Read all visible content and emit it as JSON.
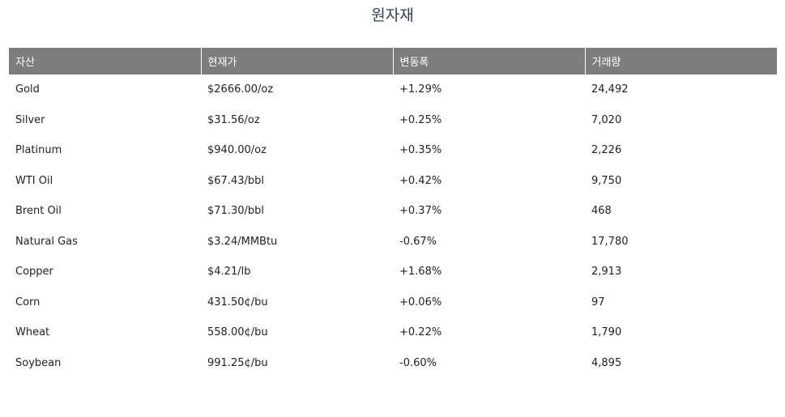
{
  "page": {
    "title": "원자재"
  },
  "table": {
    "headers": [
      "자산",
      "현재가",
      "변동폭",
      "거래량"
    ],
    "rows": [
      {
        "asset": "Gold",
        "price": "$2666.00/oz",
        "change": "+1.29%",
        "volume": "24,492"
      },
      {
        "asset": "Silver",
        "price": "$31.56/oz",
        "change": "+0.25%",
        "volume": "7,020"
      },
      {
        "asset": "Platinum",
        "price": "$940.00/oz",
        "change": "+0.35%",
        "volume": "2,226"
      },
      {
        "asset": "WTI Oil",
        "price": "$67.43/bbl",
        "change": "+0.42%",
        "volume": "9,750"
      },
      {
        "asset": "Brent Oil",
        "price": "$71.30/bbl",
        "change": "+0.37%",
        "volume": "468"
      },
      {
        "asset": "Natural Gas",
        "price": "$3.24/MMBtu",
        "change": "-0.67%",
        "volume": "17,780"
      },
      {
        "asset": "Copper",
        "price": "$4.21/lb",
        "change": "+1.68%",
        "volume": "2,913"
      },
      {
        "asset": "Corn",
        "price": "431.50¢/bu",
        "change": "+0.06%",
        "volume": "97"
      },
      {
        "asset": "Wheat",
        "price": "558.00¢/bu",
        "change": "+0.22%",
        "volume": "1,790"
      },
      {
        "asset": "Soybean",
        "price": "991.25¢/bu",
        "change": "-0.60%",
        "volume": "4,895"
      }
    ]
  },
  "colors": {
    "header_background": "#7d7d7d",
    "header_text": "#ffffff",
    "title_text": "#2f3e55",
    "body_text": "#222222"
  }
}
